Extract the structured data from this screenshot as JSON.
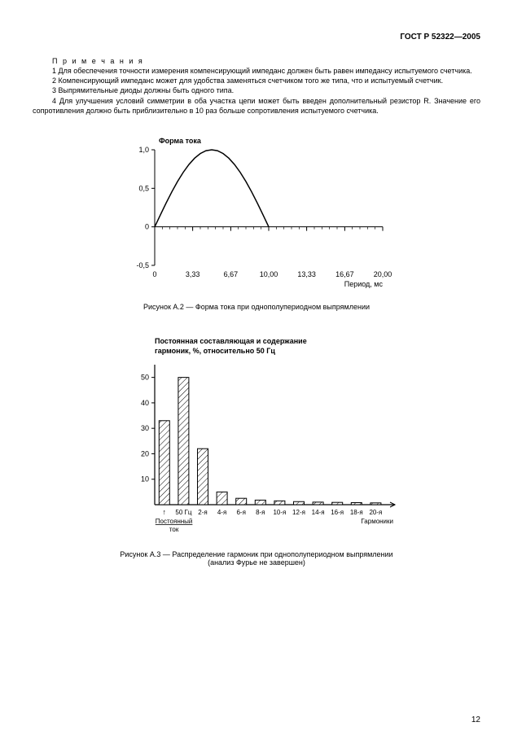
{
  "header": {
    "doc_code": "ГОСТ Р 52322—2005"
  },
  "notes": {
    "title": "П р и м е ч а н и я",
    "items": [
      "1  Для обеспечения точности измерения компенсирующий импеданс должен быть равен импедансу испытуемого счетчика.",
      "2  Компенсирующий импеданс может для удобства заменяться счетчиком того же типа, что и испытуемый счетчик.",
      "3  Выпрямительные диоды должны быть одного типа.",
      "4  Для улучшения условий симметрии в оба участка цепи может быть введен дополнительный резистор R. Значение его сопротивления должно быть приблизительно в 10 раз больше сопротивления испытуемого счетчика."
    ]
  },
  "chart_a2": {
    "type": "line",
    "title": "Форма тока",
    "xlabel": "Период, мс",
    "x_ticks": [
      "0",
      "3,33",
      "6,67",
      "10,00",
      "13,33",
      "16,67",
      "20,00"
    ],
    "y_ticks": [
      "-0,5",
      "0",
      "0,5",
      "1,0"
    ],
    "xlim": [
      0,
      20
    ],
    "ylim": [
      -0.5,
      1.0
    ],
    "curve_points": [
      [
        0,
        0
      ],
      [
        0.5,
        0.156
      ],
      [
        1,
        0.309
      ],
      [
        1.5,
        0.454
      ],
      [
        2,
        0.588
      ],
      [
        2.5,
        0.707
      ],
      [
        3,
        0.809
      ],
      [
        3.5,
        0.891
      ],
      [
        4,
        0.951
      ],
      [
        4.5,
        0.988
      ],
      [
        5,
        1.0
      ],
      [
        5.5,
        0.988
      ],
      [
        6,
        0.951
      ],
      [
        6.5,
        0.891
      ],
      [
        7,
        0.809
      ],
      [
        7.5,
        0.707
      ],
      [
        8,
        0.588
      ],
      [
        8.5,
        0.454
      ],
      [
        9,
        0.309
      ],
      [
        9.5,
        0.156
      ],
      [
        10,
        0
      ]
    ],
    "line_color": "#000000",
    "line_width": 1.5,
    "axis_color": "#000000",
    "caption": "Рисунок А.2  — Форма тока при однополупериодном выпрямлении"
  },
  "chart_a3": {
    "type": "bar",
    "title_line1": "Постоянная составляющая и содержание",
    "title_line2": "гармоник, %, относительно 50 Гц",
    "y_ticks": [
      "10",
      "20",
      "30",
      "40",
      "50"
    ],
    "ylim": [
      0,
      55
    ],
    "x_under_label1": "↑",
    "x_under_label2": "Постоянный",
    "x_under_label3": "ток",
    "x_far_label": "Гармоники",
    "categories": [
      "",
      "50 Гц",
      "2-я",
      "4-я",
      "6-я",
      "8-я",
      "10-я",
      "12-я",
      "14-я",
      "16-я",
      "18-я",
      "20-я"
    ],
    "values": [
      33,
      50,
      22,
      5,
      2.5,
      1.8,
      1.5,
      1.2,
      1.0,
      0.9,
      0.8,
      0.7
    ],
    "bar_fill": "#ffffff",
    "bar_stroke": "#000000",
    "hatch_color": "#000000",
    "axis_color": "#000000",
    "caption": "Рисунок А.3 — Распределение гармоник при однополупериодном выпрямлении",
    "subcaption": "(анализ Фурье не завершен)"
  },
  "page_number": "12"
}
